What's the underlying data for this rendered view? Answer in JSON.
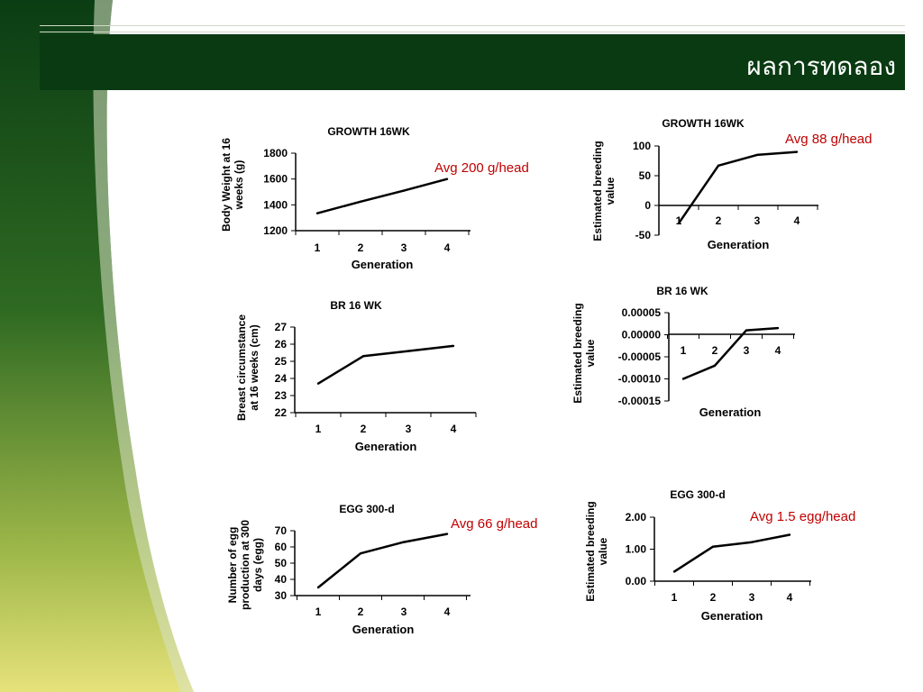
{
  "slide": {
    "title": "ผลการทดลอง",
    "colors": {
      "title_bar": "#0a3a12",
      "accent": "#c00000",
      "line": "#000000"
    }
  },
  "annotations": [
    "Avg 200 g/head",
    "Avg 88 g/head",
    "Avg 66 g/head",
    "Avg 1.5 egg/head"
  ],
  "chart_data": [
    {
      "type": "line",
      "title": "GROWTH 16WK",
      "xlabel": "Generation",
      "ylabel": [
        "Body Weight at 16",
        "weeks (g)"
      ],
      "x": [
        1,
        2,
        3,
        4
      ],
      "values": [
        1335,
        1425,
        1510,
        1600
      ],
      "ylim": [
        1200,
        1800
      ],
      "yticks": [
        1200,
        1400,
        1600,
        1800
      ],
      "ytick_labels": [
        "1200",
        "1400",
        "1600",
        "1800"
      ]
    },
    {
      "type": "line",
      "title": "GROWTH 16WK",
      "xlabel": "Generation",
      "ylabel": [
        "Estimated breeding",
        "value"
      ],
      "x": [
        1,
        2,
        3,
        4
      ],
      "values": [
        -30,
        67,
        85,
        90
      ],
      "ylim": [
        -50,
        100
      ],
      "yticks": [
        -50,
        0,
        50,
        100
      ],
      "ytick_labels": [
        "-50",
        "0",
        "50",
        "100"
      ]
    },
    {
      "type": "line",
      "title": "BR 16 WK",
      "xlabel": "Generation",
      "ylabel": [
        "Breast circumstance",
        "at 16 weeks (cm)"
      ],
      "x": [
        1,
        2,
        3,
        4
      ],
      "values": [
        23.7,
        25.3,
        25.6,
        25.9
      ],
      "ylim": [
        22,
        27
      ],
      "yticks": [
        22,
        23,
        24,
        25,
        26,
        27
      ],
      "ytick_labels": [
        "22",
        "23",
        "24",
        "25",
        "26",
        "27"
      ]
    },
    {
      "type": "line",
      "title": "BR 16 WK",
      "xlabel": "Generation",
      "ylabel": [
        "Estimated breeding",
        "value"
      ],
      "x": [
        1,
        2,
        3,
        4
      ],
      "values": [
        -0.0001,
        -7e-05,
        1e-05,
        1.5e-05
      ],
      "ylim": [
        -0.00015,
        5e-05
      ],
      "yticks": [
        -0.00015,
        -0.0001,
        -5e-05,
        0,
        5e-05
      ],
      "ytick_labels": [
        "-0.00015",
        "-0.00010",
        "-0.00005",
        "0.00000",
        "0.00005"
      ]
    },
    {
      "type": "line",
      "title": "EGG 300-d",
      "xlabel": "Generation",
      "ylabel": [
        "Number of egg",
        "production at 300",
        "days (egg)"
      ],
      "x": [
        1,
        2,
        3,
        4
      ],
      "values": [
        35,
        56,
        63,
        68
      ],
      "ylim": [
        30,
        70
      ],
      "yticks": [
        30,
        40,
        50,
        60,
        70
      ],
      "ytick_labels": [
        "30",
        "40",
        "50",
        "60",
        "70"
      ]
    },
    {
      "type": "line",
      "title": "EGG 300-d",
      "xlabel": "Generation",
      "ylabel": [
        "Estimated breeding",
        "value"
      ],
      "x": [
        1,
        2,
        3,
        4
      ],
      "values": [
        0.3,
        1.08,
        1.22,
        1.45
      ],
      "ylim": [
        0,
        2
      ],
      "yticks": [
        0,
        1,
        2
      ],
      "ytick_labels": [
        "0.00",
        "1.00",
        "2.00"
      ]
    }
  ]
}
